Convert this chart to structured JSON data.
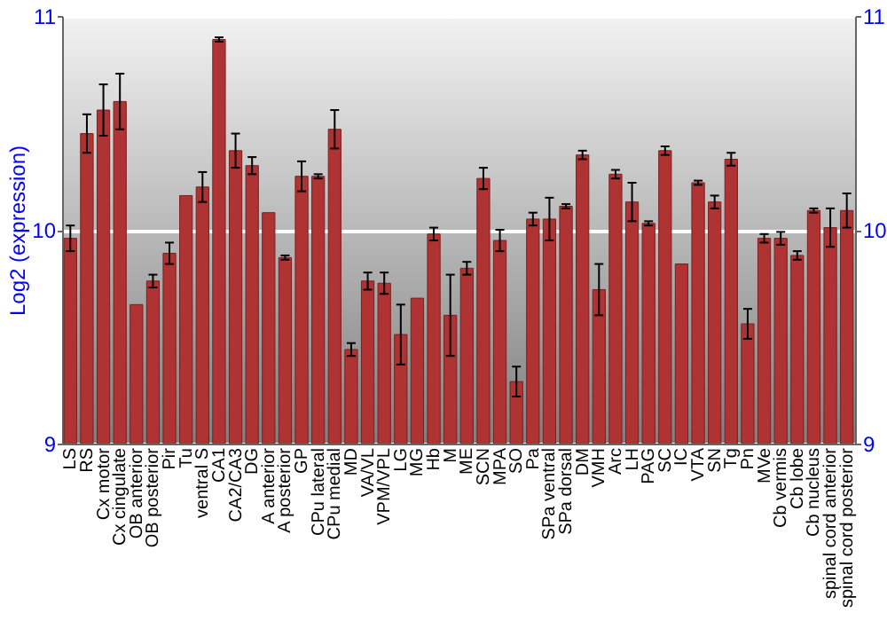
{
  "chart_data": {
    "type": "bar",
    "ylabel": "Log2 (expression)",
    "categories": [
      "LS",
      "RS",
      "Cx motor",
      "Cx cingulate",
      "OB anterior",
      "OB posterior",
      "Pir",
      "Tu",
      "ventral S",
      "CA1",
      "CA2/CA3",
      "DG",
      "A anterior",
      "A posterior",
      "GP",
      "CPu lateral",
      "CPu medial",
      "MD",
      "VA/VL",
      "VPM/VPL",
      "LG",
      "MG",
      "Hb",
      "M",
      "ME",
      "SCN",
      "MPA",
      "SO",
      "Pa",
      "SPa ventral",
      "SPa dorsal",
      "DM",
      "VMH",
      "Arc",
      "LH",
      "PAG",
      "SC",
      "IC",
      "VTA",
      "SN",
      "Tg",
      "Pn",
      "MVe",
      "Cb vermis",
      "Cb lobe",
      "Cb nucleus",
      "spinal cord anterior",
      "spinal cord posterior"
    ],
    "series": [
      {
        "color": "#b03333",
        "values": [
          9.96,
          10.45,
          10.56,
          10.6,
          9.65,
          9.76,
          9.89,
          10.16,
          10.2,
          10.89,
          10.37,
          10.3,
          10.08,
          9.87,
          10.25,
          10.25,
          10.47,
          9.44,
          9.76,
          9.75,
          9.51,
          9.68,
          9.98,
          9.6,
          9.82,
          10.24,
          9.95,
          9.29,
          10.05,
          10.05,
          10.11,
          10.35,
          9.72,
          10.26,
          10.13,
          10.03,
          10.37,
          9.84,
          10.22,
          10.13,
          10.33,
          9.56,
          9.96,
          9.96,
          9.88,
          10.09,
          10.01,
          10.09
        ],
        "errors": [
          0.06,
          0.09,
          0.12,
          0.13,
          null,
          0.03,
          0.05,
          null,
          0.07,
          0.01,
          0.08,
          0.04,
          null,
          0.01,
          0.07,
          0.01,
          0.09,
          0.03,
          0.04,
          0.05,
          0.14,
          null,
          0.03,
          0.19,
          0.03,
          0.05,
          0.05,
          0.07,
          0.03,
          0.1,
          0.01,
          0.02,
          0.12,
          0.02,
          0.09,
          0.01,
          0.02,
          null,
          0.01,
          0.03,
          0.03,
          0.07,
          0.02,
          0.03,
          0.02,
          0.01,
          0.09,
          0.08
        ]
      }
    ],
    "ylim": [
      9,
      11
    ],
    "yticks": [
      9,
      10,
      11
    ],
    "y2lim": [
      9,
      11
    ],
    "y2ticks": [
      9,
      10,
      11
    ],
    "grid": "y"
  }
}
